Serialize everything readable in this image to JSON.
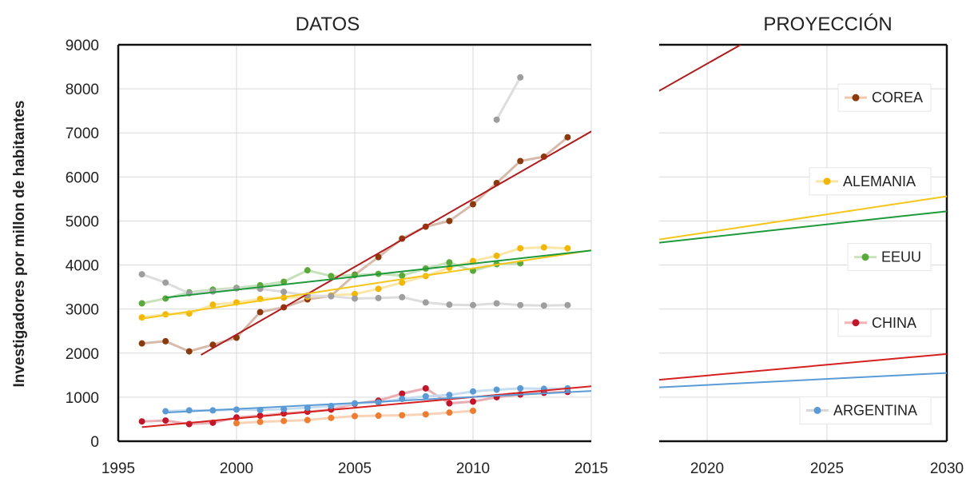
{
  "chart_data": {
    "type": "line",
    "panels": {
      "datos": {
        "title": "DATOS",
        "xlim": [
          1995,
          2015
        ],
        "xticks": [
          1995,
          2000,
          2005,
          2010,
          2015
        ]
      },
      "proyeccion": {
        "title": "PROYECCIÓN",
        "xlim": [
          2018,
          2030
        ],
        "xticks": [
          2020,
          2025,
          2030
        ]
      }
    },
    "ylabel": "Investigadores por millon de habitantes",
    "ylim": [
      0,
      9000
    ],
    "yticks": [
      0,
      1000,
      2000,
      3000,
      4000,
      5000,
      6000,
      7000,
      8000,
      9000
    ],
    "grid": true,
    "legend": "right side of projection panel",
    "series": [
      {
        "name": "COREA",
        "color": "#8b3a0e",
        "x": [
          1996,
          1997,
          1998,
          1999,
          2000,
          2001,
          2002,
          2003,
          2004,
          2005,
          2006,
          2007,
          2008,
          2009,
          2010,
          2011,
          2012,
          2013,
          2014
        ],
        "y": [
          2220,
          2270,
          2040,
          2190,
          2350,
          2930,
          3040,
          3220,
          3300,
          3780,
          4180,
          4600,
          4870,
          5000,
          5380,
          5860,
          6360,
          6460,
          6900
        ]
      },
      {
        "name": "ALEMANIA",
        "color": "#f2b705",
        "x": [
          1996,
          1997,
          1998,
          1999,
          2000,
          2001,
          2002,
          2003,
          2004,
          2005,
          2006,
          2007,
          2008,
          2009,
          2010,
          2011,
          2012,
          2013,
          2014
        ],
        "y": [
          2810,
          2880,
          2900,
          3100,
          3150,
          3230,
          3260,
          3280,
          3310,
          3340,
          3460,
          3600,
          3750,
          3940,
          4090,
          4210,
          4380,
          4400,
          4380
        ]
      },
      {
        "name": "EEUU",
        "color": "#5aa93b",
        "x": [
          1996,
          1997,
          1998,
          1999,
          2000,
          2001,
          2002,
          2003,
          2004,
          2005,
          2006,
          2007,
          2008,
          2009,
          2010,
          2011,
          2012
        ],
        "y": [
          3130,
          3240,
          3380,
          3440,
          3480,
          3540,
          3620,
          3880,
          3750,
          3770,
          3800,
          3760,
          3920,
          4060,
          3870,
          4020,
          4040
        ]
      },
      {
        "name": "CHINA",
        "color": "#c0152a",
        "x": [
          1996,
          1997,
          1998,
          1999,
          2000,
          2001,
          2002,
          2003,
          2004,
          2005,
          2006,
          2007,
          2008,
          2009,
          2010,
          2011,
          2012,
          2013,
          2014
        ],
        "y": [
          450,
          470,
          390,
          420,
          540,
          580,
          630,
          670,
          720,
          850,
          920,
          1080,
          1200,
          860,
          900,
          1000,
          1060,
          1100,
          1120
        ]
      },
      {
        "name": "ARGENTINA",
        "color": "#5b9bd5",
        "x": [
          1997,
          1998,
          1999,
          2000,
          2001,
          2002,
          2003,
          2004,
          2005,
          2006,
          2007,
          2008,
          2009,
          2010,
          2011,
          2012,
          2013,
          2014
        ],
        "y": [
          680,
          700,
          700,
          720,
          710,
          730,
          760,
          800,
          860,
          880,
          960,
          1020,
          1050,
          1130,
          1170,
          1200,
          1190,
          1200
        ]
      },
      {
        "name": "",
        "color": "#9e9e9e",
        "x": [
          1996,
          1997,
          1998,
          1999,
          2000,
          2001,
          2002,
          2003,
          2004,
          2005,
          2006,
          2007,
          2008,
          2009,
          2010,
          2011,
          2012,
          2013,
          2014
        ],
        "y": [
          3790,
          3600,
          3360,
          3400,
          3470,
          3460,
          3390,
          3310,
          3290,
          3240,
          3250,
          3270,
          3150,
          3100,
          3090,
          3130,
          3090,
          3080,
          3090
        ]
      },
      {
        "name": "",
        "color": "#9e9e9e",
        "x": [
          2011,
          2012
        ],
        "y": [
          7300,
          8260
        ]
      },
      {
        "name": "",
        "color": "#ed7d31",
        "x": [
          2000,
          2001,
          2002,
          2003,
          2004,
          2005,
          2006,
          2007,
          2008,
          2009,
          2010
        ],
        "y": [
          410,
          440,
          460,
          480,
          530,
          570,
          580,
          590,
          610,
          650,
          690
        ]
      }
    ],
    "trendlines": [
      {
        "series": "COREA",
        "color": "#b01c1c",
        "x": [
          1998.5,
          2021.4
        ],
        "y": [
          1960,
          9000
        ]
      },
      {
        "series": "ALEMANIA",
        "color": "#f5c518",
        "x": [
          1996,
          2030
        ],
        "y": [
          2780,
          5560
        ]
      },
      {
        "series": "EEUU",
        "color": "#1e9a3c",
        "x": [
          1997,
          2030
        ],
        "y": [
          3260,
          5220
        ]
      },
      {
        "series": "CHINA",
        "color": "#d62020",
        "x": [
          1996,
          2030
        ],
        "y": [
          320,
          1980
        ]
      },
      {
        "series": "ARGENTINA",
        "color": "#5b9bd5",
        "x": [
          1997,
          2030
        ],
        "y": [
          650,
          1550
        ]
      }
    ],
    "legend_entries": [
      {
        "label": "COREA",
        "color": "#8b3a0e",
        "line": "#f0c9ad",
        "y": 7800
      },
      {
        "label": "ALEMANIA",
        "color": "#f2b705",
        "line": "#f9e5a8",
        "y": 5900
      },
      {
        "label": "EEUU",
        "color": "#5aa93b",
        "line": "#c9e4bd",
        "y": 4180
      },
      {
        "label": "CHINA",
        "color": "#c0152a",
        "line": "#f5b1b6",
        "y": 2690
      },
      {
        "label": "ARGENTINA",
        "color": "#5b9bd5",
        "line": "#d6d6d6",
        "y": 700
      }
    ]
  }
}
